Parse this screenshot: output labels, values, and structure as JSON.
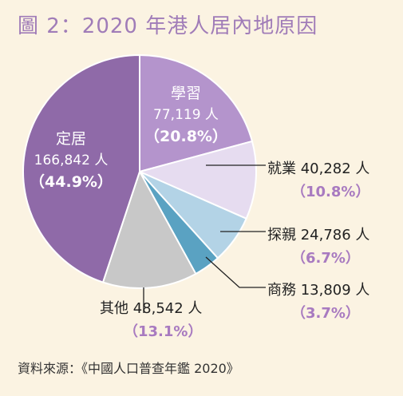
{
  "title": "圖 2：2020 年港人居內地原因",
  "source": "資料來源：《中國人口普查年鑑 2020》",
  "colors": {
    "title": "#a07cb8",
    "background": "#fbf3e2",
    "percent_outside": "#a87ac0"
  },
  "chart_data": {
    "type": "pie",
    "title": "圖 2：2020 年港人居內地原因",
    "start_angle_deg": 0,
    "direction": "clockwise",
    "slices": [
      {
        "label": "學習",
        "count": "77,119 人",
        "percent": "20.8%",
        "value": 20.8,
        "color": "#b494cc",
        "label_position": "inside"
      },
      {
        "label": "就業",
        "count": "40,282 人",
        "percent": "10.8%",
        "value": 10.8,
        "color": "#e6dcf0",
        "label_position": "outside"
      },
      {
        "label": "探親",
        "count": "24,786 人",
        "percent": "6.7%",
        "value": 6.7,
        "color": "#b3d3e6",
        "label_position": "outside"
      },
      {
        "label": "商務",
        "count": "13,809 人",
        "percent": "3.7%",
        "value": 3.7,
        "color": "#5aa2c2",
        "label_position": "outside"
      },
      {
        "label": "其他",
        "count": "48,542 人",
        "percent": "13.1%",
        "value": 13.1,
        "color": "#c8c8c8",
        "label_position": "outside"
      },
      {
        "label": "定居",
        "count": "166,842 人",
        "percent": "44.9%",
        "value": 44.9,
        "color": "#8f6aa8",
        "label_position": "inside"
      }
    ]
  }
}
